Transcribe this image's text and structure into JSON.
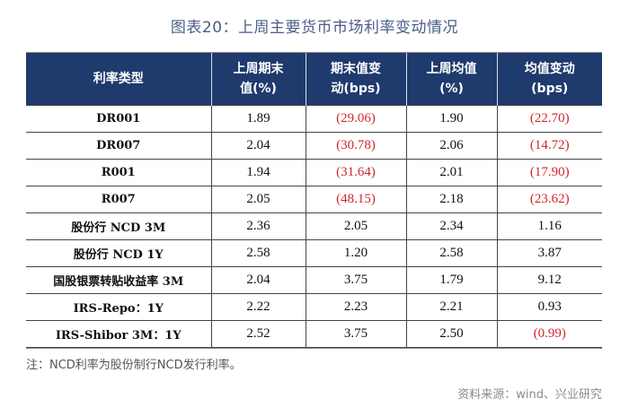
{
  "title": "图表20：上周主要货币市场利率变动情况",
  "table": {
    "headers": [
      [
        "利率类型"
      ],
      [
        "上周期末",
        "值(%)"
      ],
      [
        "期末值变",
        "动(bps)"
      ],
      [
        "上周均值",
        "(%)"
      ],
      [
        "均值变动",
        "(bps)"
      ]
    ],
    "rows": [
      {
        "name": "DR001",
        "cells": [
          {
            "v": "1.89",
            "neg": false
          },
          {
            "v": "(29.06)",
            "neg": true
          },
          {
            "v": "1.90",
            "neg": false
          },
          {
            "v": "(22.70)",
            "neg": true
          }
        ]
      },
      {
        "name": "DR007",
        "cells": [
          {
            "v": "2.04",
            "neg": false
          },
          {
            "v": "(30.78)",
            "neg": true
          },
          {
            "v": "2.06",
            "neg": false
          },
          {
            "v": "(14.72)",
            "neg": true
          }
        ]
      },
      {
        "name": "R001",
        "cells": [
          {
            "v": "1.94",
            "neg": false
          },
          {
            "v": "(31.64)",
            "neg": true
          },
          {
            "v": "2.01",
            "neg": false
          },
          {
            "v": "(17.90)",
            "neg": true
          }
        ]
      },
      {
        "name": "R007",
        "cells": [
          {
            "v": "2.05",
            "neg": false
          },
          {
            "v": "(48.15)",
            "neg": true
          },
          {
            "v": "2.18",
            "neg": false
          },
          {
            "v": "(23.62)",
            "neg": true
          }
        ]
      },
      {
        "name": "股份行 NCD 3M",
        "cells": [
          {
            "v": "2.36",
            "neg": false
          },
          {
            "v": "2.05",
            "neg": false
          },
          {
            "v": "2.34",
            "neg": false
          },
          {
            "v": "1.16",
            "neg": false
          }
        ]
      },
      {
        "name": "股份行 NCD 1Y",
        "cells": [
          {
            "v": "2.58",
            "neg": false
          },
          {
            "v": "1.20",
            "neg": false
          },
          {
            "v": "2.58",
            "neg": false
          },
          {
            "v": "3.87",
            "neg": false
          }
        ]
      },
      {
        "name": "国股银票转贴收益率 3M",
        "cells": [
          {
            "v": "2.04",
            "neg": false
          },
          {
            "v": "3.75",
            "neg": false
          },
          {
            "v": "1.79",
            "neg": false
          },
          {
            "v": "9.12",
            "neg": false
          }
        ]
      },
      {
        "name": "IRS-Repo：1Y",
        "cells": [
          {
            "v": "2.22",
            "neg": false
          },
          {
            "v": "2.23",
            "neg": false
          },
          {
            "v": "2.21",
            "neg": false
          },
          {
            "v": "0.93",
            "neg": false
          }
        ]
      },
      {
        "name": "IRS-Shibor 3M：1Y",
        "cells": [
          {
            "v": "2.52",
            "neg": false
          },
          {
            "v": "3.75",
            "neg": false
          },
          {
            "v": "2.50",
            "neg": false
          },
          {
            "v": "(0.99)",
            "neg": true
          }
        ]
      }
    ]
  },
  "note": "注：NCD利率为股份制行NCD发行利率。",
  "source": "资料来源：wind、兴业研究",
  "colors": {
    "title": "#4a5d86",
    "header_bg": "#1f3a6d",
    "negative": "#d0262d"
  }
}
